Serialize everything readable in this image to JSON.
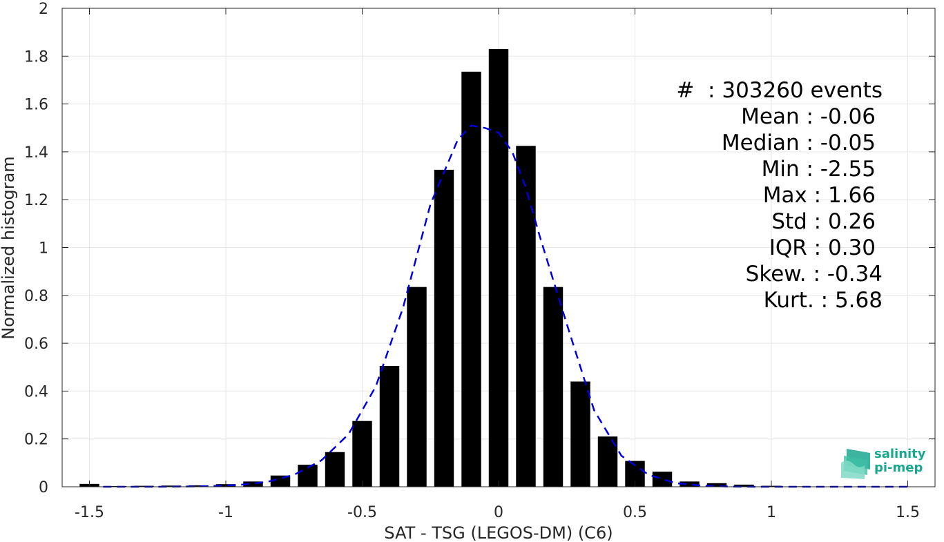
{
  "chart_data": {
    "type": "bar",
    "xlabel": "SAT - TSG (LEGOS-DM) (C6)",
    "ylabel": "Normalized histogram",
    "xlim": [
      -1.6,
      1.6
    ],
    "ylim": [
      0,
      2
    ],
    "xticks": [
      "-1.5",
      "-1",
      "-0.5",
      "0",
      "0.5",
      "1",
      "1.5"
    ],
    "xtick_values": [
      -1.5,
      -1,
      -0.5,
      0,
      0.5,
      1,
      1.5
    ],
    "yticks": [
      "0",
      "0.2",
      "0.4",
      "0.6",
      "0.8",
      "1",
      "1.2",
      "1.4",
      "1.6",
      "1.8",
      "2"
    ],
    "ytick_values": [
      0,
      0.2,
      0.4,
      0.6,
      0.8,
      1,
      1.2,
      1.4,
      1.6,
      1.8,
      2
    ],
    "grid": true,
    "bar_color": "#000000",
    "bars": {
      "x": [
        -1.5,
        -1.4,
        -1.3,
        -1.2,
        -1.1,
        -1.0,
        -0.9,
        -0.8,
        -0.7,
        -0.6,
        -0.5,
        -0.4,
        -0.3,
        -0.2,
        -0.1,
        0.0,
        0.1,
        0.2,
        0.3,
        0.4,
        0.5,
        0.6,
        0.7,
        0.8,
        0.9,
        1.0,
        1.1,
        1.2,
        1.3,
        1.4,
        1.5
      ],
      "values": [
        0.012,
        0.003,
        0.004,
        0.005,
        0.006,
        0.011,
        0.022,
        0.047,
        0.092,
        0.145,
        0.275,
        0.505,
        0.835,
        1.325,
        1.735,
        1.83,
        1.425,
        0.835,
        0.44,
        0.21,
        0.108,
        0.063,
        0.022,
        0.015,
        0.009,
        0.004,
        0.002,
        0.001,
        0.001,
        0.001,
        0.001
      ]
    },
    "fit_curve": {
      "style": "dashed",
      "color": "#0000dd",
      "x": [
        -1.45,
        -1.35,
        -1.25,
        -1.15,
        -1.05,
        -0.95,
        -0.85,
        -0.75,
        -0.65,
        -0.55,
        -0.45,
        -0.35,
        -0.25,
        -0.15,
        -0.1,
        -0.05,
        0.0,
        0.05,
        0.1,
        0.15,
        0.25,
        0.35,
        0.45,
        0.55,
        0.65,
        0.75,
        0.85,
        0.95,
        1.05,
        1.15,
        1.25,
        1.35,
        1.45,
        1.5
      ],
      "y": [
        0.0,
        0.0,
        0.0,
        0.001,
        0.003,
        0.008,
        0.02,
        0.05,
        0.11,
        0.22,
        0.42,
        0.75,
        1.18,
        1.45,
        1.51,
        1.5,
        1.48,
        1.4,
        1.25,
        1.05,
        0.68,
        0.32,
        0.13,
        0.05,
        0.015,
        0.004,
        0.001,
        0.0,
        0.0,
        0.0,
        0.0,
        0.0,
        0.0,
        0.0
      ]
    }
  },
  "stats": {
    "events": "#  : 303260 events",
    "mean": "Mean : -0.06",
    "median": "Median : -0.05",
    "min": "Min : -2.55",
    "max": "Max : 1.66",
    "std": "Std : 0.26",
    "iqr": "IQR : 0.30",
    "skew": "Skew. : -0.34",
    "kurt": "Kurt. : 5.68"
  },
  "logo": {
    "line1": "salinity",
    "line2": "pi-mep",
    "color": "#1aa78f"
  }
}
